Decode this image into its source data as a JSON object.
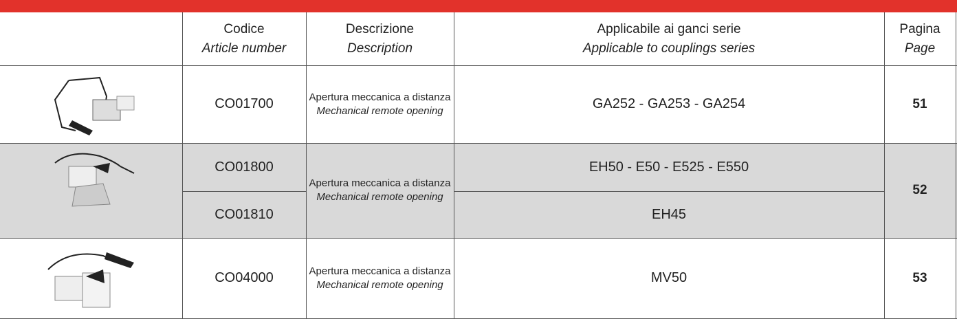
{
  "table": {
    "columns": [
      {
        "title": "Codice",
        "subtitle": "Article number"
      },
      {
        "title": "Descrizione",
        "subtitle": "Description"
      },
      {
        "title": "Applicabile ai ganci serie",
        "subtitle": "Applicable to couplings series"
      },
      {
        "title": "Pagina",
        "subtitle": "Page"
      }
    ],
    "rows": [
      {
        "codes": [
          "CO01700"
        ],
        "description": {
          "it": "Apertura meccanica a distanza",
          "en": "Mechanical remote opening"
        },
        "series": [
          "GA252 - GA253 - GA254"
        ],
        "page": 51
      },
      {
        "codes": [
          "CO01800",
          "CO01810"
        ],
        "description": {
          "it": "Apertura meccanica a distanza",
          "en": "Mechanical remote opening"
        },
        "series": [
          "EH50 - E50 - E525 - E550",
          "EH45"
        ],
        "page": 52
      },
      {
        "codes": [
          "CO04000"
        ],
        "description": {
          "it": "Apertura meccanica a distanza",
          "en": "Mechanical remote opening"
        },
        "series": [
          "MV50"
        ],
        "page": 53
      }
    ]
  }
}
